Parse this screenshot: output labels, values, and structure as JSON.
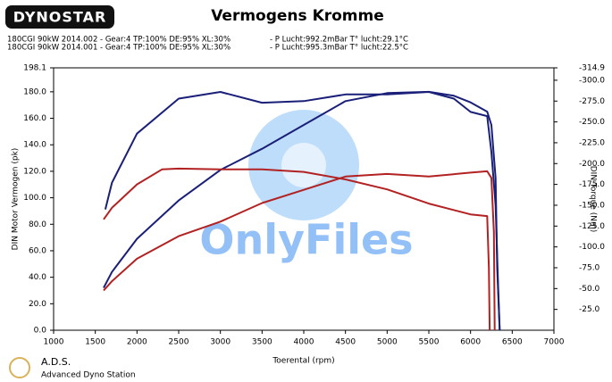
{
  "logo": "DYNOSTAR",
  "footer": {
    "brand": "A.D.S.",
    "name": "Advanced Dyno Station"
  },
  "watermark": "OnlyFiles",
  "chart_data": {
    "type": "line",
    "title": "Vermogens Kromme",
    "info_lines": [
      {
        "text": "180CGI 90kW 2014.002 - Gear:4 TP:100% DE:95% XL:30%",
        "conditions": "- P Lucht:992.2mBar T° lucht:29.1°C",
        "color": "#000000"
      },
      {
        "text": "180CGI 90kW 2014.001 - Gear:4 TP:100% DE:95% XL:30%",
        "conditions": "- P Lucht:995.3mBar T° lucht:22.5°C",
        "color": "#c00000"
      }
    ],
    "x_label": "Toerental (rpm)",
    "y_label": "DIN Motor Vermogen (pk)",
    "y2_label": "DIN Torque (Nm)",
    "xlim": [
      1000,
      7000
    ],
    "xticks": [
      1000,
      1500,
      2000,
      2500,
      3000,
      3500,
      4000,
      4500,
      5000,
      5500,
      6000,
      6500,
      7000
    ],
    "ylim": [
      0,
      198.1
    ],
    "yticks": [
      {
        "value": 0,
        "label": "0.0"
      },
      {
        "value": 20,
        "label": "20.0"
      },
      {
        "value": 40,
        "label": "40.0"
      },
      {
        "value": 60,
        "label": "60.0"
      },
      {
        "value": 80,
        "label": "80.0"
      },
      {
        "value": 100,
        "label": "100.0"
      },
      {
        "value": 120,
        "label": "120.0"
      },
      {
        "value": 140,
        "label": "140.0"
      },
      {
        "value": 160,
        "label": "160.0"
      },
      {
        "value": 180,
        "label": "180.0"
      },
      198.1
    ],
    "y2lim": [
      0,
      -314.9
    ],
    "y2ticks": [
      {
        "value": -25,
        "label": "-25.0"
      },
      {
        "value": -50,
        "label": "-50.0"
      },
      {
        "value": -75,
        "label": "-75.0"
      },
      {
        "value": -100,
        "label": "-100.0"
      },
      {
        "value": -125,
        "label": "-125.0"
      },
      {
        "value": -150,
        "label": "-150.0"
      },
      {
        "value": -175,
        "label": "-175.0"
      },
      {
        "value": -200,
        "label": "-200.0"
      },
      {
        "value": -225,
        "label": "-225.0"
      },
      {
        "value": -250,
        "label": "-250.0"
      },
      {
        "value": -275,
        "label": "-275.0"
      },
      {
        "value": -300,
        "label": "-300.0"
      },
      -314.9
    ],
    "grid": false,
    "series": [
      {
        "color": "#1a1f78",
        "axis": "y",
        "x": [
          1600,
          1700,
          2000,
          2500,
          3000,
          3500,
          4000,
          4500,
          5000,
          5500,
          5800,
          6000,
          6200,
          6250,
          6300,
          6320,
          6350
        ],
        "values": [
          32,
          44,
          69,
          98,
          121,
          137,
          155,
          173,
          179,
          180,
          177,
          172,
          165,
          155,
          115,
          47,
          0
        ]
      },
      {
        "color": "#1a1f78",
        "axis": "y2",
        "x": [
          1620,
          1700,
          2000,
          2500,
          3000,
          3500,
          4000,
          4500,
          5000,
          5500,
          5800,
          6000,
          6200,
          6250,
          6300,
          6330,
          6350
        ],
        "values": [
          -145,
          -177,
          -236,
          -278,
          -286,
          -273,
          -275,
          -283,
          -283,
          -286,
          -278,
          -262,
          -257,
          -214,
          -150,
          -54,
          0
        ]
      },
      {
        "color": "#b22222",
        "axis": "y",
        "x": [
          1600,
          1700,
          2000,
          2500,
          3000,
          3500,
          4000,
          4500,
          5000,
          5500,
          6000,
          6200,
          6250,
          6280,
          6290
        ],
        "values": [
          30,
          37,
          54,
          71,
          82,
          96,
          106,
          116,
          118,
          116,
          119,
          120,
          115,
          74,
          0
        ]
      },
      {
        "color": "#b22222",
        "axis": "y2",
        "x": [
          1600,
          1700,
          2000,
          2300,
          2500,
          3000,
          3500,
          4000,
          4500,
          5000,
          5500,
          6000,
          6200,
          6220,
          6230
        ],
        "values": [
          -133,
          -147,
          -175,
          -193,
          -194,
          -193,
          -193,
          -190,
          -181,
          -169,
          -152,
          -139,
          -137,
          -75,
          0
        ]
      }
    ]
  }
}
